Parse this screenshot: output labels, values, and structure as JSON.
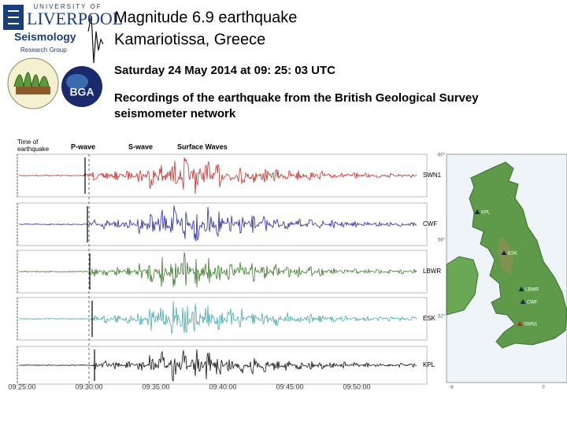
{
  "logos": {
    "university": "UNIVERSITY OF",
    "name": "LIVERPOOL",
    "group": "Seismology",
    "subgroup": "Research Group",
    "bga": "BGA"
  },
  "header": {
    "title_lines": [
      "Magnitude 6.9 earthquake",
      "Kamariotissa, Greece"
    ],
    "date": "Saturday 24 May 2014 at 09: 25: 03 UTC",
    "description_lines": [
      "Recordings of the earthquake from the British Geological Survey",
      "seismometer network"
    ]
  },
  "seismograms": {
    "labels": {
      "origin": [
        "Time of",
        "earthquake"
      ],
      "p_wave": "P-wave",
      "s_wave": "S-wave",
      "surface": "Surface Waves"
    },
    "traces": [
      {
        "station": "SWN1"
      },
      {
        "station": "CWF"
      },
      {
        "station": "LBWR"
      },
      {
        "station": "ESK"
      },
      {
        "station": "KPL"
      }
    ],
    "time_labels": [
      "09:25:00",
      "09:30:00",
      "09:35:00",
      "09:40:00",
      "09:45:00",
      "09:50:00"
    ]
  },
  "map": {
    "stations": [
      "KPL",
      "ESK",
      "LBWR",
      "CWF",
      "SWN1"
    ],
    "lat_labels": [
      "60°",
      "56°",
      "52°"
    ],
    "lon_labels": [
      "-8",
      "0"
    ]
  }
}
